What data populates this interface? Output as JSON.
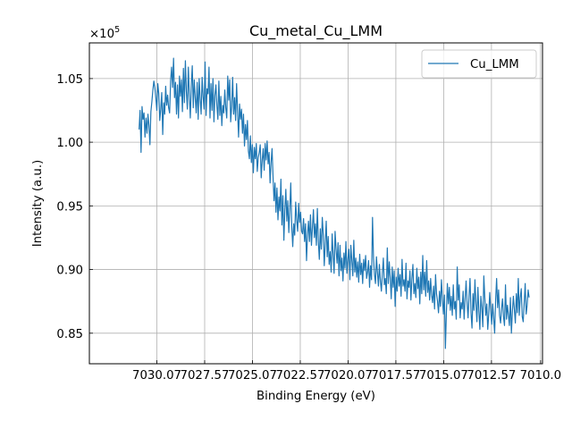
{
  "chart_data": {
    "type": "line",
    "title": "Cu_metal_Cu_LMM",
    "xlabel": "Binding Energy (eV)",
    "ylabel": "Intensity (a.u.)",
    "y_multiplier": "×10",
    "y_multiplier_exp": "5",
    "x_inverted": true,
    "xlim": [
      7033.6,
      7009.9
    ],
    "ylim": [
      82600,
      107800
    ],
    "grid": true,
    "legend_position": "top-right",
    "x_ticks": [
      {
        "value": 7030.07,
        "label": "7030.07"
      },
      {
        "value": 7027.57,
        "label": "7027.57"
      },
      {
        "value": 7025.07,
        "label": "7025.07"
      },
      {
        "value": 7022.57,
        "label": "7022.57"
      },
      {
        "value": 7020.07,
        "label": "7020.07"
      },
      {
        "value": 7017.57,
        "label": "7017.57"
      },
      {
        "value": 7015.07,
        "label": "7015.07"
      },
      {
        "value": 7012.57,
        "label": "7012.57"
      },
      {
        "value": 7010.0,
        "label": "7010.0"
      }
    ],
    "y_ticks": [
      {
        "value": 85000,
        "label": "0.85"
      },
      {
        "value": 90000,
        "label": "0.90"
      },
      {
        "value": 95000,
        "label": "0.95"
      },
      {
        "value": 100000,
        "label": "1.00"
      },
      {
        "value": 105000,
        "label": "1.05"
      }
    ],
    "series": [
      {
        "name": "Cu_LMM",
        "color": "#1f77b4",
        "x_start": 7031.0,
        "x_end": 7010.6,
        "y": [
          101000,
          102500,
          99200,
          102800,
          101800,
          102300,
          100400,
          101900,
          100700,
          102200,
          101300,
          99800,
          102400,
          103200,
          104100,
          104800,
          104300,
          103500,
          102500,
          104600,
          103800,
          101700,
          102600,
          103900,
          100600,
          103100,
          102200,
          104400,
          102900,
          103700,
          102700,
          102300,
          104800,
          105900,
          104300,
          106600,
          103500,
          104700,
          102200,
          104500,
          101900,
          105200,
          103600,
          104900,
          102400,
          105800,
          103100,
          106400,
          104000,
          102600,
          105900,
          103700,
          101900,
          104500,
          106000,
          102700,
          104900,
          103500,
          102300,
          104700,
          101800,
          105000,
          103400,
          102200,
          105100,
          103600,
          102600,
          106300,
          102100,
          104200,
          103800,
          105900,
          101900,
          104600,
          102500,
          105000,
          101600,
          103700,
          104500,
          102900,
          101800,
          104800,
          102100,
          103600,
          101300,
          102900,
          102300,
          104100,
          102700,
          101900,
          105200,
          103300,
          104900,
          101600,
          102800,
          105100,
          102200,
          103500,
          101700,
          104600,
          102400,
          100400,
          103000,
          101800,
          102600,
          100700,
          102200,
          99700,
          101400,
          100200,
          101700,
          99300,
          98700,
          100500,
          98400,
          99800,
          97600,
          99600,
          98700,
          99900,
          97700,
          98800,
          99200,
          99800,
          97200,
          98600,
          99500,
          97800,
          99900,
          98600,
          100100,
          98300,
          99200,
          96800,
          98400,
          99500,
          97300,
          95400,
          96800,
          94500,
          96400,
          93900,
          95700,
          94600,
          97100,
          93500,
          95800,
          92300,
          94700,
          96300,
          93800,
          95400,
          92900,
          94700,
          96800,
          93400,
          91800,
          93600,
          92700,
          95300,
          93900,
          93000,
          95200,
          93700,
          94500,
          93000,
          92800,
          94000,
          92200,
          93600,
          90700,
          92700,
          93800,
          92200,
          94300,
          91900,
          93300,
          94700,
          92500,
          93600,
          91900,
          94800,
          92200,
          90800,
          93200,
          91600,
          94100,
          92700,
          90300,
          92100,
          93800,
          91000,
          92600,
          90400,
          91400,
          89800,
          92800,
          91200,
          89700,
          93000,
          91600,
          90500,
          92100,
          89500,
          91900,
          89900,
          90900,
          89100,
          91300,
          90100,
          92200,
          89700,
          90800,
          91600,
          89200,
          91900,
          90700,
          89500,
          92300,
          89800,
          90900,
          89400,
          90600,
          89000,
          91200,
          89600,
          90500,
          88900,
          90800,
          89900,
          91100,
          89300,
          89800,
          90700,
          88600,
          90300,
          89200,
          94100,
          90900,
          89600,
          88900,
          91000,
          89800,
          88700,
          90400,
          89100,
          88300,
          89700,
          90900,
          88800,
          89300,
          88100,
          91700,
          88900,
          90600,
          89300,
          87700,
          90200,
          88600,
          89900,
          87100,
          89400,
          88300,
          90100,
          88700,
          89600,
          87900,
          90800,
          88700,
          89200,
          88300,
          90500,
          87700,
          89100,
          88600,
          89900,
          87600,
          89300,
          90400,
          88100,
          88900,
          87800,
          90100,
          88500,
          89400,
          87300,
          89800,
          88100,
          91100,
          88400,
          89800,
          87900,
          90700,
          88200,
          89100,
          87600,
          89300,
          88000,
          87400,
          88700,
          86900,
          89600,
          88100,
          87500,
          86600,
          88300,
          87100,
          89200,
          87700,
          86500,
          88000,
          83800,
          86600,
          88900,
          87300,
          88600,
          86800,
          87900,
          86400,
          88800,
          86900,
          87500,
          86100,
          90200,
          87600,
          88800,
          86200,
          87400,
          86900,
          88300,
          86100,
          87700,
          89100,
          87400,
          86200,
          87900,
          89300,
          86600,
          85400,
          88100,
          86800,
          89200,
          87300,
          85900,
          88600,
          86700,
          85300,
          87900,
          87000,
          85500,
          89500,
          87800,
          86400,
          87300,
          85300,
          86500,
          88200,
          86900,
          85700,
          87300,
          86200,
          85000,
          87600,
          89300,
          87000,
          88400,
          86400,
          85800,
          86900,
          87700,
          86300,
          85600,
          88800,
          86100,
          87200,
          86400,
          85600,
          87800,
          85000,
          86700,
          87900,
          86900,
          85800,
          88100,
          86600,
          89300,
          86400,
          87800,
          88500,
          86300,
          85900,
          87400,
          88900,
          86500,
          87200,
          88400,
          87800
        ]
      }
    ]
  }
}
